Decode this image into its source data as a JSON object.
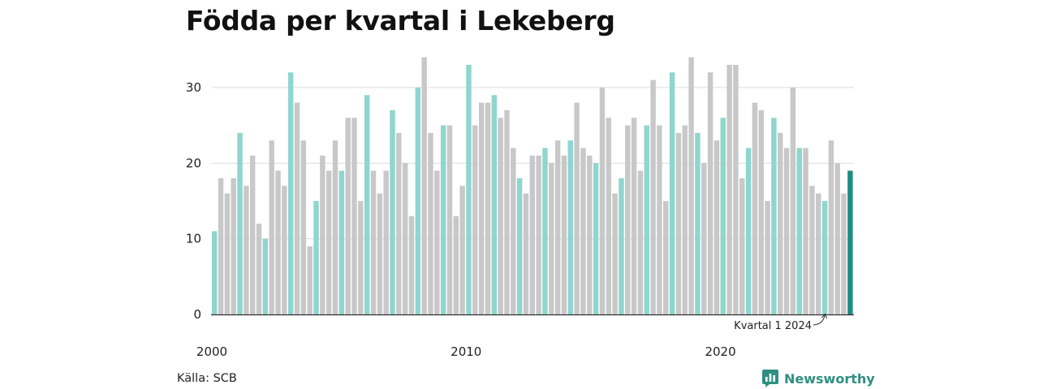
{
  "chart_data": {
    "type": "bar",
    "title": "Födda per kvartal i Lekeberg",
    "source": "Källa: SCB",
    "brand": "Newsworthy",
    "y_ticks": [
      0,
      10,
      20,
      30
    ],
    "ylim": [
      0,
      34
    ],
    "x_ticks": [
      "2000",
      "2010",
      "2020"
    ],
    "start_year": 2000,
    "grid": true,
    "colors": {
      "q1": "#8ed6ce",
      "other": "#c8c8c8",
      "latest": "#1e8c80",
      "axis": "#333333",
      "grid": "#dddddd"
    },
    "annotation": {
      "text": "Kvartal 1 2024"
    },
    "values": [
      11,
      18,
      16,
      18,
      24,
      17,
      21,
      12,
      10,
      23,
      19,
      17,
      32,
      28,
      23,
      9,
      15,
      21,
      19,
      23,
      19,
      26,
      26,
      15,
      29,
      19,
      16,
      19,
      27,
      24,
      20,
      13,
      30,
      34,
      24,
      19,
      25,
      25,
      13,
      17,
      33,
      25,
      28,
      28,
      29,
      26,
      27,
      22,
      18,
      16,
      21,
      21,
      22,
      20,
      23,
      21,
      23,
      28,
      22,
      21,
      20,
      30,
      26,
      16,
      18,
      25,
      26,
      19,
      25,
      31,
      25,
      15,
      32,
      24,
      25,
      34,
      24,
      20,
      32,
      23,
      26,
      33,
      33,
      18,
      22,
      28,
      27,
      15,
      26,
      24,
      22,
      30,
      22,
      22,
      17,
      16,
      15,
      23,
      20,
      16,
      19
    ]
  }
}
